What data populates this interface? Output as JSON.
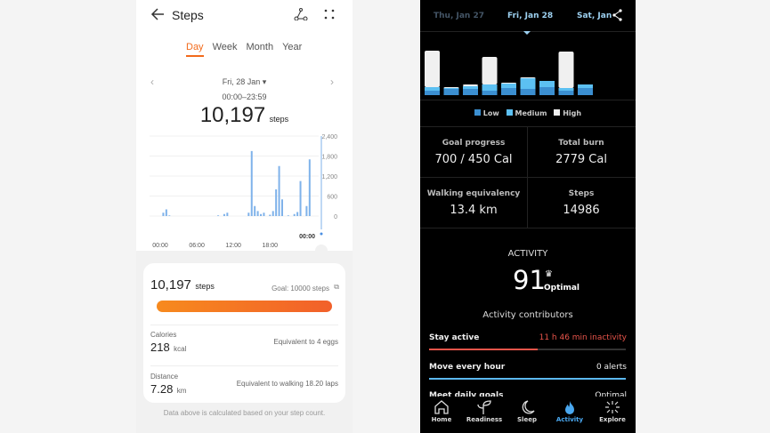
{
  "huawei": {
    "title": "Steps",
    "tabs": [
      "Day",
      "Week",
      "Month",
      "Year"
    ],
    "active_tab": "Day",
    "date": "Fri, 28 Jan",
    "time_range": "00:00–23:59",
    "total": "10,197",
    "unit": "steps",
    "chart_data": {
      "type": "bar",
      "y_ticks": [
        "2,400",
        "1,800",
        "1,200",
        "600",
        "0"
      ],
      "ylim": [
        0,
        2400
      ],
      "x_ticks": [
        "00:00",
        "06:00",
        "12:00",
        "18:00"
      ],
      "cursor_label": "00:00",
      "x_hours": [
        0.5,
        1,
        1.5,
        9.5,
        10.5,
        11,
        14.5,
        15,
        15.5,
        16,
        16.5,
        17,
        18,
        18.5,
        19,
        19.5,
        20,
        21,
        22,
        22.5,
        23,
        24,
        24.5
      ],
      "values": [
        100,
        200,
        20,
        20,
        60,
        100,
        100,
        1950,
        300,
        150,
        60,
        100,
        40,
        150,
        800,
        1500,
        500,
        20,
        60,
        120,
        1050,
        300,
        1700
      ],
      "color": "#7fb2ea"
    },
    "summary": {
      "steps": "10,197",
      "steps_unit": "steps",
      "goal": "Goal: 10000 steps",
      "progress": 1.0,
      "calories_label": "Calories",
      "calories": "218",
      "calories_unit": "kcal",
      "calories_eq": "Equivalent to 4 eggs",
      "distance_label": "Distance",
      "distance": "7.28",
      "distance_unit": "km",
      "distance_eq": "Equivalent to walking 18.20 laps"
    },
    "footnote": "Data above is calculated based on your step count.",
    "accent": "#f26a1b"
  },
  "oura": {
    "dates": [
      "Thu, Jan 27",
      "Fri, Jan 28",
      "Sat, Jan"
    ],
    "chart_data": {
      "type": "bar",
      "stacked": true,
      "series": [
        {
          "name": "Low",
          "values": [
            10,
            14,
            14,
            10,
            16,
            14,
            18,
            10,
            16
          ]
        },
        {
          "name": "Medium",
          "values": [
            8,
            2,
            6,
            14,
            10,
            24,
            14,
            6,
            8
          ]
        },
        {
          "name": "High",
          "values": [
            82,
            2,
            4,
            62,
            2,
            2,
            0,
            82,
            0
          ]
        }
      ],
      "colors": [
        "#3b8fd1",
        "#5cc0f2",
        "#f0f0f0"
      ]
    },
    "legend": [
      "Low",
      "Medium",
      "High"
    ],
    "stats": [
      {
        "label": "Goal progress",
        "value": "700 / 450 Cal"
      },
      {
        "label": "Total burn",
        "value": "2779 Cal"
      },
      {
        "label": "Walking equivalency",
        "value": "13.4 km"
      },
      {
        "label": "Steps",
        "value": "14986"
      }
    ],
    "activity_title": "ACTIVITY",
    "score": "91",
    "score_label": "Optimal",
    "contributors_title": "Activity contributors",
    "contributors": [
      {
        "label": "Stay active",
        "value": "11 h 46 min inactivity",
        "progress": 0.55,
        "color": "#e8544a"
      },
      {
        "label": "Move every hour",
        "value": "0 alerts",
        "progress": 1.0,
        "color": "#5cb8f2"
      },
      {
        "label": "Meet daily goals",
        "value": "Optimal"
      }
    ],
    "nav": [
      "Home",
      "Readiness",
      "Sleep",
      "Activity",
      "Explore"
    ],
    "active_nav": "Activity"
  }
}
